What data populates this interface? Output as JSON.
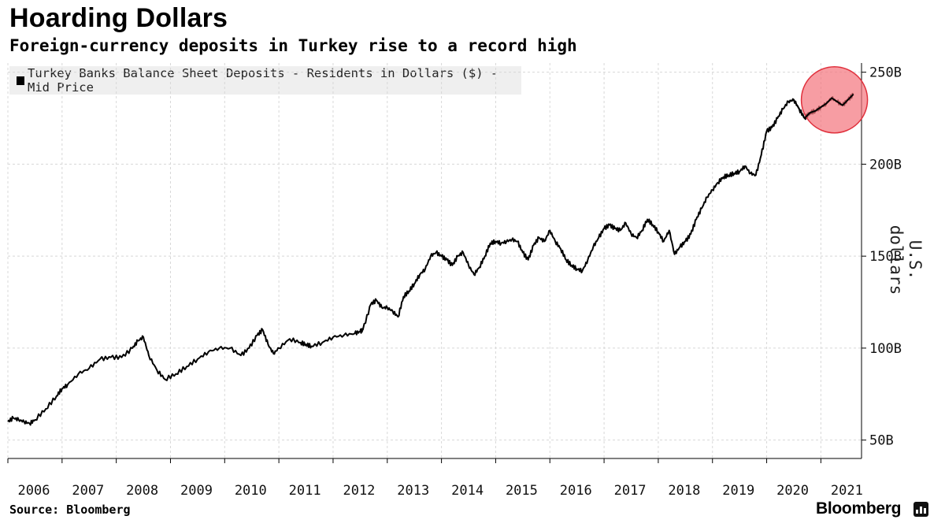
{
  "title": "Hoarding Dollars",
  "subtitle": "Foreign-currency deposits in Turkey rise to a record high",
  "source": "Source: Bloomberg",
  "brand": "Bloomberg",
  "icons": {
    "brand": "bloomberg-chart-icon",
    "legend": "square-icon"
  },
  "colors": {
    "line": "#000000",
    "highlight": "#f4747c",
    "highlight_edge": "#e0303c",
    "legend_bg": "#efefef"
  },
  "chart_data": {
    "type": "line",
    "legend": {
      "placement": "top-left",
      "entries": [
        "Turkey Banks Balance Sheet Deposits - Residents in Dollars ($) - Mid Price"
      ]
    },
    "ylabel": "U.S. dollars",
    "xlabel": "",
    "ylim": [
      40,
      255
    ],
    "xlim": [
      2006.0,
      2021.75
    ],
    "y_axis_side": "right",
    "grid": true,
    "y_ticks": [
      {
        "value": 50,
        "label": "50B"
      },
      {
        "value": 100,
        "label": "100B"
      },
      {
        "value": 150,
        "label": "150B"
      },
      {
        "value": 200,
        "label": "200B"
      },
      {
        "value": 250,
        "label": "250B"
      }
    ],
    "x_ticks": [
      {
        "value": 2006,
        "label": "2006"
      },
      {
        "value": 2007,
        "label": "2007"
      },
      {
        "value": 2008,
        "label": "2008"
      },
      {
        "value": 2009,
        "label": "2009"
      },
      {
        "value": 2010,
        "label": "2010"
      },
      {
        "value": 2011,
        "label": "2011"
      },
      {
        "value": 2012,
        "label": "2012"
      },
      {
        "value": 2013,
        "label": "2013"
      },
      {
        "value": 2014,
        "label": "2014"
      },
      {
        "value": 2015,
        "label": "2015"
      },
      {
        "value": 2016,
        "label": "2016"
      },
      {
        "value": 2017,
        "label": "2017"
      },
      {
        "value": 2018,
        "label": "2018"
      },
      {
        "value": 2019,
        "label": "2019"
      },
      {
        "value": 2020,
        "label": "2020"
      },
      {
        "value": 2021,
        "label": "2021"
      }
    ],
    "annotation": {
      "type": "highlight-circle",
      "x": 2021.25,
      "y": 235,
      "note": "record high"
    },
    "series": [
      {
        "name": "Turkey Banks Balance Sheet Deposits - Residents in Dollars ($) - Mid Price",
        "x": [
          2006.0,
          2006.1,
          2006.2,
          2006.3,
          2006.4,
          2006.5,
          2006.7,
          2006.9,
          2007.0,
          2007.1,
          2007.3,
          2007.5,
          2007.7,
          2007.9,
          2008.1,
          2008.3,
          2008.4,
          2008.5,
          2008.6,
          2008.75,
          2008.9,
          2009.1,
          2009.3,
          2009.5,
          2009.7,
          2009.9,
          2010.1,
          2010.3,
          2010.45,
          2010.6,
          2010.7,
          2010.8,
          2010.9,
          2011.0,
          2011.2,
          2011.4,
          2011.5,
          2011.6,
          2011.8,
          2012.0,
          2012.2,
          2012.4,
          2012.5,
          2012.55,
          2012.7,
          2012.8,
          2012.9,
          2013.0,
          2013.1,
          2013.2,
          2013.3,
          2013.4,
          2013.5,
          2013.6,
          2013.7,
          2013.8,
          2013.9,
          2014.0,
          2014.1,
          2014.2,
          2014.3,
          2014.4,
          2014.5,
          2014.6,
          2014.7,
          2014.8,
          2014.9,
          2015.0,
          2015.1,
          2015.2,
          2015.3,
          2015.4,
          2015.5,
          2015.6,
          2015.7,
          2015.8,
          2015.9,
          2016.0,
          2016.1,
          2016.2,
          2016.3,
          2016.4,
          2016.5,
          2016.6,
          2016.7,
          2016.8,
          2016.9,
          2017.0,
          2017.1,
          2017.2,
          2017.3,
          2017.4,
          2017.5,
          2017.6,
          2017.7,
          2017.8,
          2017.9,
          2018.0,
          2018.1,
          2018.2,
          2018.3,
          2018.4,
          2018.5,
          2018.6,
          2018.7,
          2018.8,
          2018.9,
          2019.0,
          2019.1,
          2019.2,
          2019.3,
          2019.4,
          2019.5,
          2019.6,
          2019.7,
          2019.8,
          2019.9,
          2020.0,
          2020.1,
          2020.2,
          2020.3,
          2020.4,
          2020.5,
          2020.6,
          2020.7,
          2020.8,
          2020.9,
          2021.0,
          2021.1,
          2021.2,
          2021.3,
          2021.4,
          2021.5,
          2021.6
        ],
        "values": [
          60,
          62,
          61,
          60,
          59,
          61,
          67,
          74,
          78,
          80,
          86,
          89,
          94,
          95,
          95,
          100,
          104,
          106,
          96,
          88,
          83,
          86,
          90,
          94,
          98,
          100,
          100,
          96,
          100,
          107,
          110,
          102,
          97,
          100,
          105,
          103,
          102,
          101,
          103,
          106,
          107,
          108,
          109,
          110,
          124,
          126,
          122,
          122,
          120,
          117,
          128,
          131,
          135,
          140,
          143,
          150,
          152,
          150,
          148,
          145,
          150,
          152,
          145,
          140,
          144,
          150,
          157,
          158,
          157,
          158,
          159,
          158,
          152,
          148,
          156,
          160,
          158,
          164,
          158,
          154,
          148,
          145,
          143,
          142,
          148,
          155,
          160,
          165,
          167,
          165,
          164,
          168,
          162,
          160,
          164,
          170,
          167,
          163,
          158,
          164,
          151,
          155,
          158,
          162,
          170,
          176,
          182,
          186,
          190,
          193,
          194,
          195,
          196,
          199,
          195,
          194,
          205,
          218,
          220,
          225,
          230,
          234,
          235,
          230,
          225,
          228,
          229,
          231,
          233,
          236,
          234,
          232,
          235,
          238
        ]
      }
    ]
  }
}
